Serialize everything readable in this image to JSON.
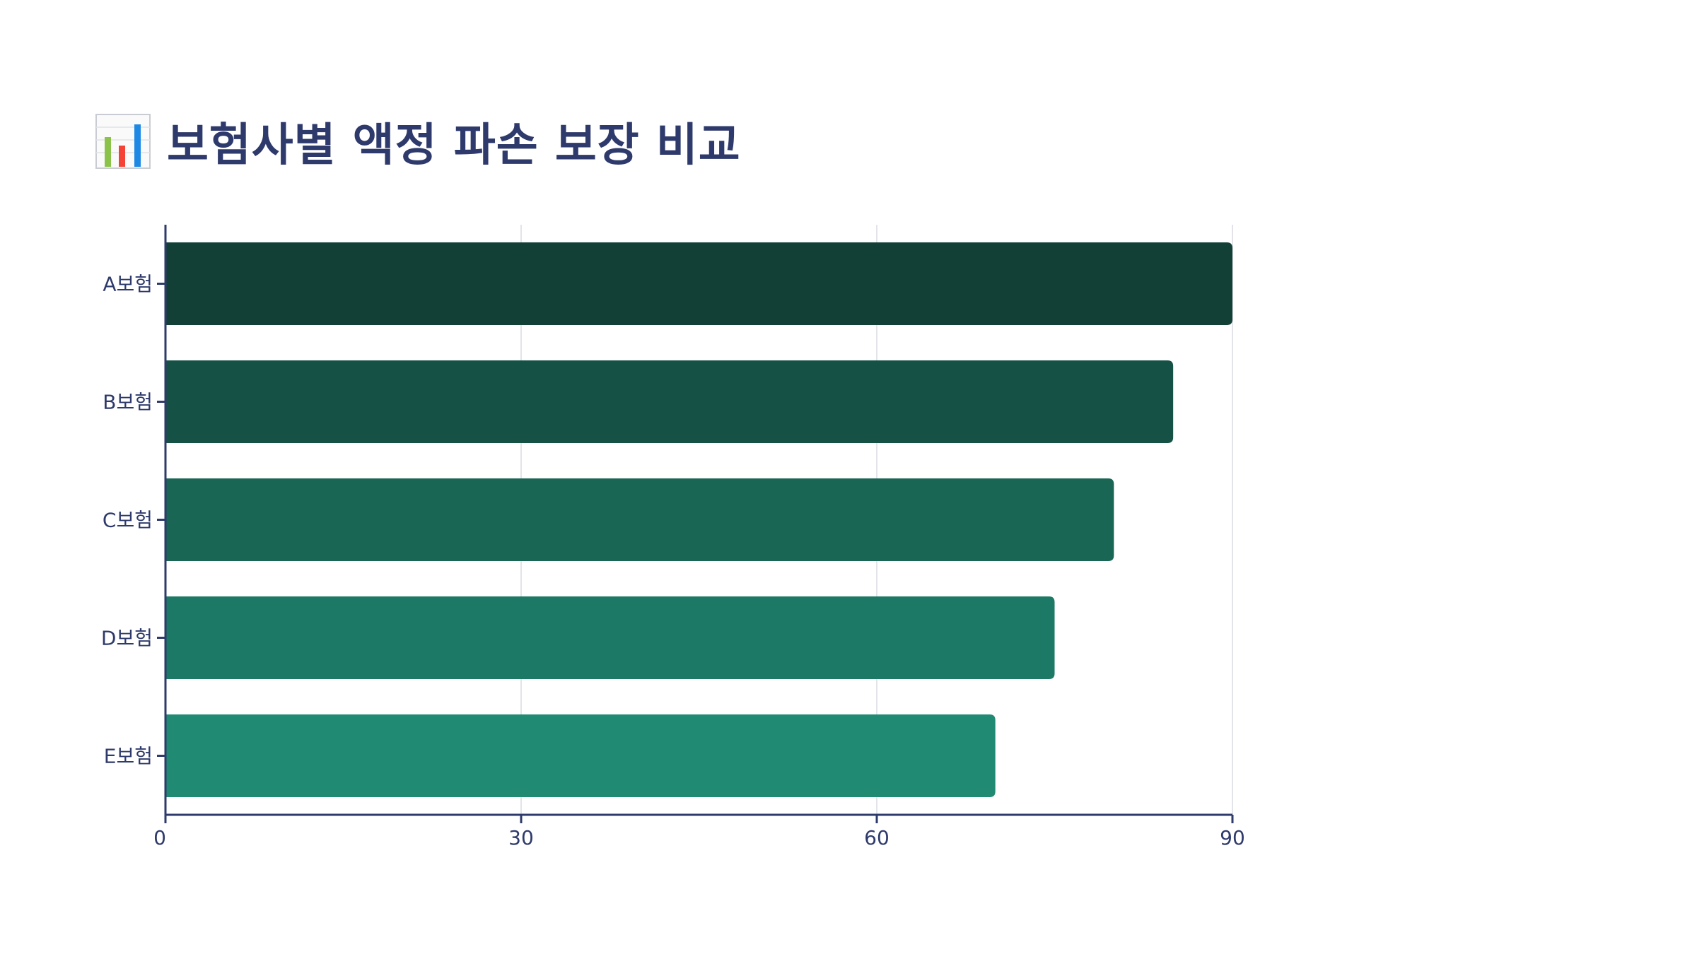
{
  "title": {
    "icon": "bar-chart-icon",
    "text": "보험사별 액정 파손 보장 비교"
  },
  "colors": {
    "title": "#2e3a6b",
    "axis": "#2e3a6b",
    "grid": "#d8dbe3",
    "bars": [
      "#124036",
      "#155245",
      "#1a6655",
      "#1c7965",
      "#218a73"
    ]
  },
  "chart_data": {
    "type": "bar",
    "orientation": "horizontal",
    "title": "보험사별 액정 파손 보장 비교",
    "categories": [
      "A보험",
      "B보험",
      "C보험",
      "D보험",
      "E보험"
    ],
    "values": [
      90,
      85,
      80,
      75,
      70
    ],
    "xlim": [
      0,
      90
    ],
    "x_ticks": [
      "0",
      "30",
      "60",
      "90"
    ],
    "x_tick_values": [
      0,
      30,
      60,
      90
    ],
    "xlabel": "",
    "ylabel": "",
    "grid": "vertical",
    "legend": "none"
  }
}
